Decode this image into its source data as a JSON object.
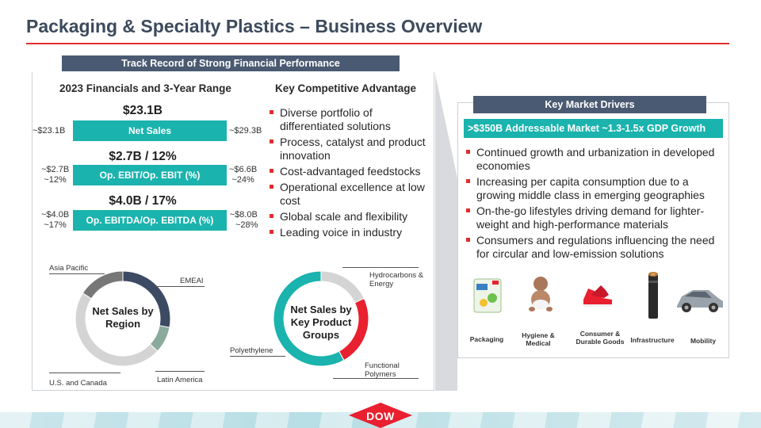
{
  "title": "Packaging & Specialty Plastics – Business Overview",
  "track_record_banner": "Track Record of Strong Financial Performance",
  "financials": {
    "heading": "2023 Financials and 3-Year Range",
    "rows": [
      {
        "value": "$23.1B",
        "label": "Net Sales",
        "low": "~$23.1B",
        "low2": "",
        "high": "~$29.3B",
        "high2": ""
      },
      {
        "value": "$2.7B / 12%",
        "label": "Op. EBIT/Op. EBIT (%)",
        "low": "~$2.7B",
        "low2": "~12%",
        "high": "~$6.6B",
        "high2": "~24%"
      },
      {
        "value": "$4.0B / 17%",
        "label": "Op. EBITDA/Op. EBITDA (%)",
        "low": "~$4.0B",
        "low2": "~17%",
        "high": "~$8.0B",
        "high2": "~28%"
      }
    ]
  },
  "competitive": {
    "heading": "Key Competitive Advantage",
    "items": [
      "Diverse portfolio of differentiated solutions",
      "Process, catalyst and product innovation",
      "Cost-advantaged feedstocks",
      "Operational excellence at low cost",
      "Global scale and flexibility",
      "Leading voice in industry"
    ]
  },
  "region_donut": {
    "center_label": "Net Sales by Region",
    "segments": [
      {
        "name": "EMEAI",
        "share": 0.28,
        "color": "#3c4a63"
      },
      {
        "name": "Latin America",
        "share": 0.09,
        "color": "#8aaa9c"
      },
      {
        "name": "U.S. and Canada",
        "share": 0.47,
        "color": "#d4d4d4"
      },
      {
        "name": "Asia Pacific",
        "share": 0.16,
        "color": "#777777"
      }
    ]
  },
  "product_donut": {
    "center_label": "Net Sales by Key Product Groups",
    "segments": [
      {
        "name": "Hydrocarbons & Energy",
        "share": 0.18,
        "color": "#d4d4d4"
      },
      {
        "name": "Functional Polymers",
        "share": 0.24,
        "color": "#e8202f"
      },
      {
        "name": "Polyethylene",
        "share": 0.58,
        "color": "#1ab3ad"
      }
    ]
  },
  "drivers": {
    "banner": "Key Market Drivers",
    "market_bar": ">$350B Addressable Market ~1.3-1.5x GDP Growth",
    "items": [
      "Continued growth and urbanization in developed economies",
      "Increasing per capita consumption due to a growing middle class in emerging geographies",
      "On-the-go lifestyles driving demand for lighter-weight and high-performance materials",
      "Consumers and regulations influencing the need for circular and low-emission solutions"
    ]
  },
  "markets": [
    {
      "label": "Packaging",
      "icon": "detergent-pack-icon"
    },
    {
      "label": "Hygiene & Medical",
      "icon": "baby-icon"
    },
    {
      "label": "Consumer & Durable Goods",
      "icon": "sneakers-icon"
    },
    {
      "label": "Infrastructure",
      "icon": "cable-icon"
    },
    {
      "label": "Mobility",
      "icon": "car-icon"
    }
  ],
  "logo": "DOW"
}
